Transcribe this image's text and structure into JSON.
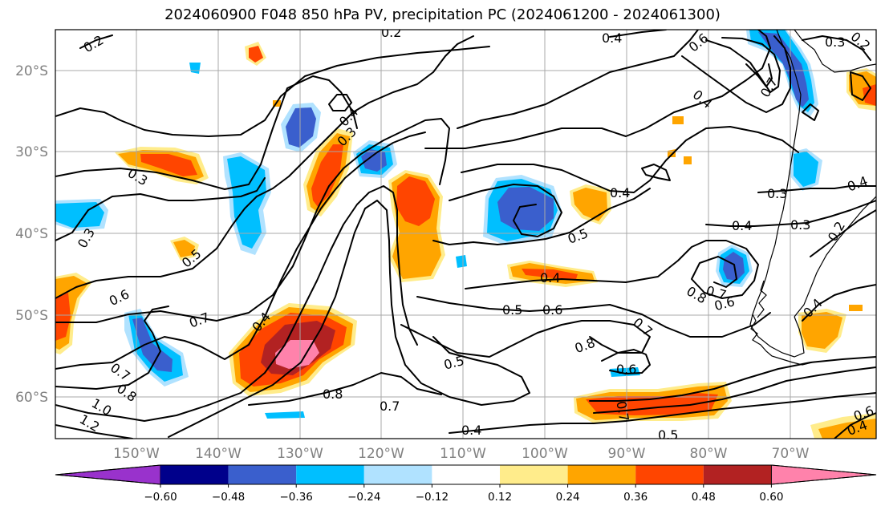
{
  "title": "2024060900 F048 850 hPa PV, precipitation PC (2024061200 - 2024061300)",
  "lat_labels": [
    "20°S",
    "30°S",
    "40°S",
    "50°S",
    "60°S"
  ],
  "lon_labels": [
    "150°W",
    "140°W",
    "130°W",
    "120°W",
    "110°W",
    "100°W",
    "90°W",
    "80°W",
    "70°W"
  ],
  "colorbar": {
    "tick_labels": [
      "−0.60",
      "−0.48",
      "−0.36",
      "−0.24",
      "−0.12",
      "0.12",
      "0.24",
      "0.36",
      "0.48",
      "0.60"
    ],
    "colors": [
      "#9932cc",
      "#00008b",
      "#3a5fcd",
      "#00bfff",
      "#b0e2ff",
      "#ffffff",
      "#ffec8b",
      "#ffa500",
      "#ff4500",
      "#b22222",
      "#ff82ab"
    ]
  },
  "contour_labels": [
    "0.2",
    "0.2",
    "0.4",
    "0.6",
    "0.3",
    "0.2",
    "0.7",
    "0.4",
    "0.4",
    "0.3",
    "0.3",
    "0.4",
    "0.3",
    "0.5",
    "0.4",
    "0.3",
    "0.4",
    "0.4",
    "0.3",
    "0.2",
    "0.5",
    "0.4",
    "0.6",
    "0.7",
    "0.4",
    "0.5",
    "0.6",
    "0.7",
    "0.8",
    "0.5",
    "0.6",
    "0.7",
    "0.6",
    "0.4",
    "0.7",
    "0.8",
    "1.0",
    "1.2",
    "0.8",
    "0.7",
    "0.4",
    "0.6",
    "0.5",
    "0.7",
    "0.8"
  ]
}
